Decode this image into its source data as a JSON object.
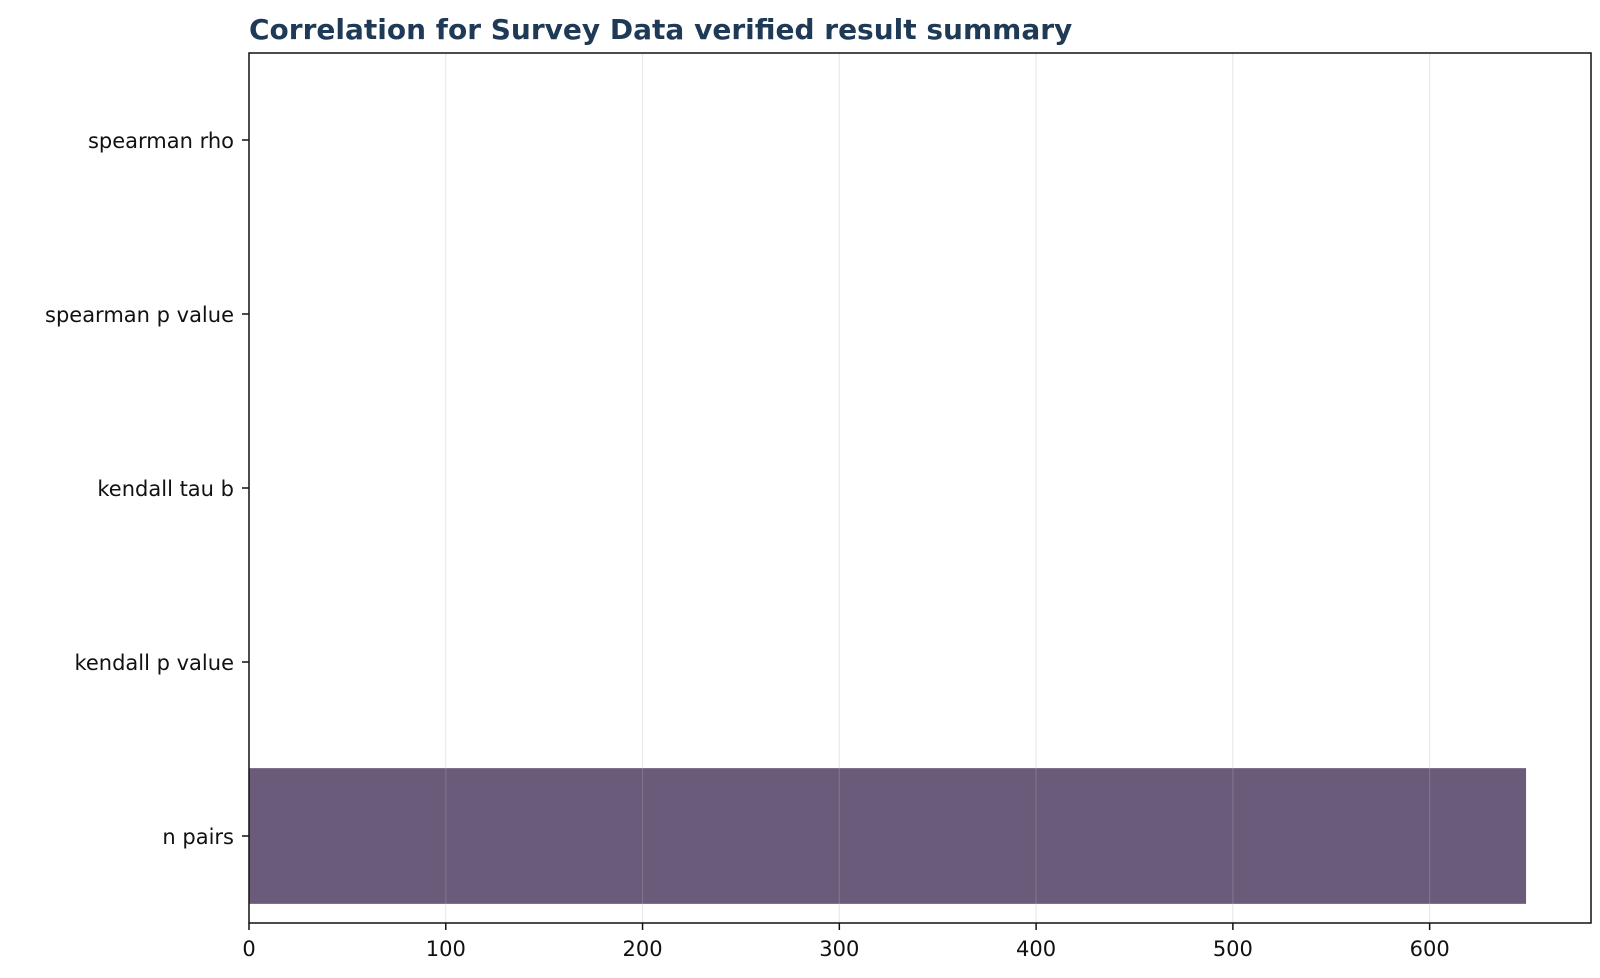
{
  "chart_data": {
    "type": "bar",
    "orientation": "horizontal",
    "title": "Correlation for Survey Data verified result summary",
    "xlabel": "",
    "ylabel": "",
    "categories": [
      "spearman rho",
      "spearman p value",
      "kendall tau b",
      "kendall p value",
      "n pairs"
    ],
    "values": [
      0,
      0,
      0,
      0,
      649
    ],
    "xlim": [
      0,
      682
    ],
    "xticks": [
      0,
      100,
      200,
      300,
      400,
      500,
      600
    ],
    "grid": "vertical",
    "legend": "none",
    "colors": {
      "bar": "#6b5b7b",
      "title": "#1f3a57",
      "grid": "#e6e6e6",
      "axis": "#111111"
    }
  }
}
